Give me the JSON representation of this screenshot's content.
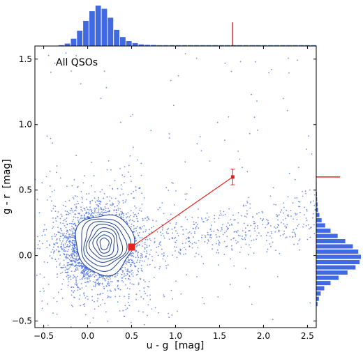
{
  "chart_data": {
    "type": "scatter",
    "panel_label": "All QSOs",
    "xlabel": "u - g  [mag]",
    "ylabel": "g - r  [mag]",
    "xlim": [
      -0.6,
      2.6
    ],
    "ylim": [
      -0.55,
      1.6
    ],
    "x_ticks": [
      -0.5,
      0.0,
      0.5,
      1.0,
      1.5,
      2.0,
      2.5
    ],
    "x_tick_labels": [
      "−0.5",
      "0.0",
      "0.5",
      "1.0",
      "1.5",
      "2.0",
      "2.5"
    ],
    "y_ticks": [
      -0.5,
      0.0,
      0.5,
      1.0,
      1.5
    ],
    "y_tick_labels": [
      "−0.5",
      "0.0",
      "0.5",
      "1.0",
      "1.5"
    ],
    "colors": {
      "points": "#4169e1",
      "contour": "#1e3f8c",
      "histogram": "#4169e1",
      "highlight": "#e8201c"
    },
    "main_cloud": {
      "center_x": 0.15,
      "center_y": 0.08,
      "sd_x": 0.2,
      "sd_y": 0.13
    },
    "red_tail": {
      "x_range": [
        0.8,
        2.6
      ],
      "y_center": 0.2,
      "slope": 0.08
    },
    "contour_levels": [
      {
        "rx": 0.33,
        "ry": 0.23
      },
      {
        "rx": 0.28,
        "ry": 0.2
      },
      {
        "rx": 0.24,
        "ry": 0.17
      },
      {
        "rx": 0.2,
        "ry": 0.145
      },
      {
        "rx": 0.16,
        "ry": 0.12
      },
      {
        "rx": 0.12,
        "ry": 0.095
      },
      {
        "rx": 0.08,
        "ry": 0.07
      },
      {
        "rx": 0.05,
        "ry": 0.045
      }
    ],
    "contour_center": [
      0.17,
      0.09
    ],
    "median_point": {
      "x": 0.5,
      "y": 0.065
    },
    "offset_point": {
      "x": 1.65,
      "y": 0.6,
      "yerr": 0.06
    },
    "top_histogram": {
      "bin_centers": [
        -0.3,
        -0.23,
        -0.16,
        -0.09,
        -0.02,
        0.05,
        0.12,
        0.19,
        0.26,
        0.33,
        0.4,
        0.47,
        0.54,
        0.61,
        0.68,
        0.75,
        0.82,
        0.89,
        0.96,
        1.03,
        1.1,
        1.17,
        1.24,
        1.31,
        1.38,
        1.45,
        1.52,
        1.59,
        1.66,
        1.73,
        1.8,
        1.87,
        1.94,
        2.01,
        2.08,
        2.15,
        2.22,
        2.29,
        2.36,
        2.43,
        2.5,
        2.57
      ],
      "counts": [
        0.02,
        0.06,
        0.18,
        0.38,
        0.62,
        0.86,
        1.0,
        0.92,
        0.7,
        0.4,
        0.22,
        0.12,
        0.07,
        0.04,
        0.03,
        0.025,
        0.02,
        0.02,
        0.02,
        0.02,
        0.02,
        0.02,
        0.02,
        0.02,
        0.02,
        0.02,
        0.02,
        0.02,
        0.02,
        0.02,
        0.02,
        0.02,
        0.02,
        0.02,
        0.02,
        0.02,
        0.02,
        0.02,
        0.02,
        0.02,
        0.02,
        0.02
      ],
      "marker_x": 1.65
    },
    "right_histogram": {
      "bin_centers": [
        -0.37,
        -0.33,
        -0.29,
        -0.25,
        -0.21,
        -0.17,
        -0.13,
        -0.09,
        -0.05,
        -0.01,
        0.03,
        0.07,
        0.11,
        0.15,
        0.19,
        0.23,
        0.27,
        0.31,
        0.35,
        0.39,
        0.43,
        0.47,
        0.51,
        0.55
      ],
      "counts": [
        0.03,
        0.06,
        0.1,
        0.18,
        0.32,
        0.5,
        0.7,
        0.88,
        0.97,
        1.0,
        0.94,
        0.82,
        0.65,
        0.48,
        0.32,
        0.2,
        0.12,
        0.07,
        0.04,
        0.03,
        0.02,
        0.015,
        0.01,
        0.01
      ],
      "marker_y": 0.6
    }
  }
}
